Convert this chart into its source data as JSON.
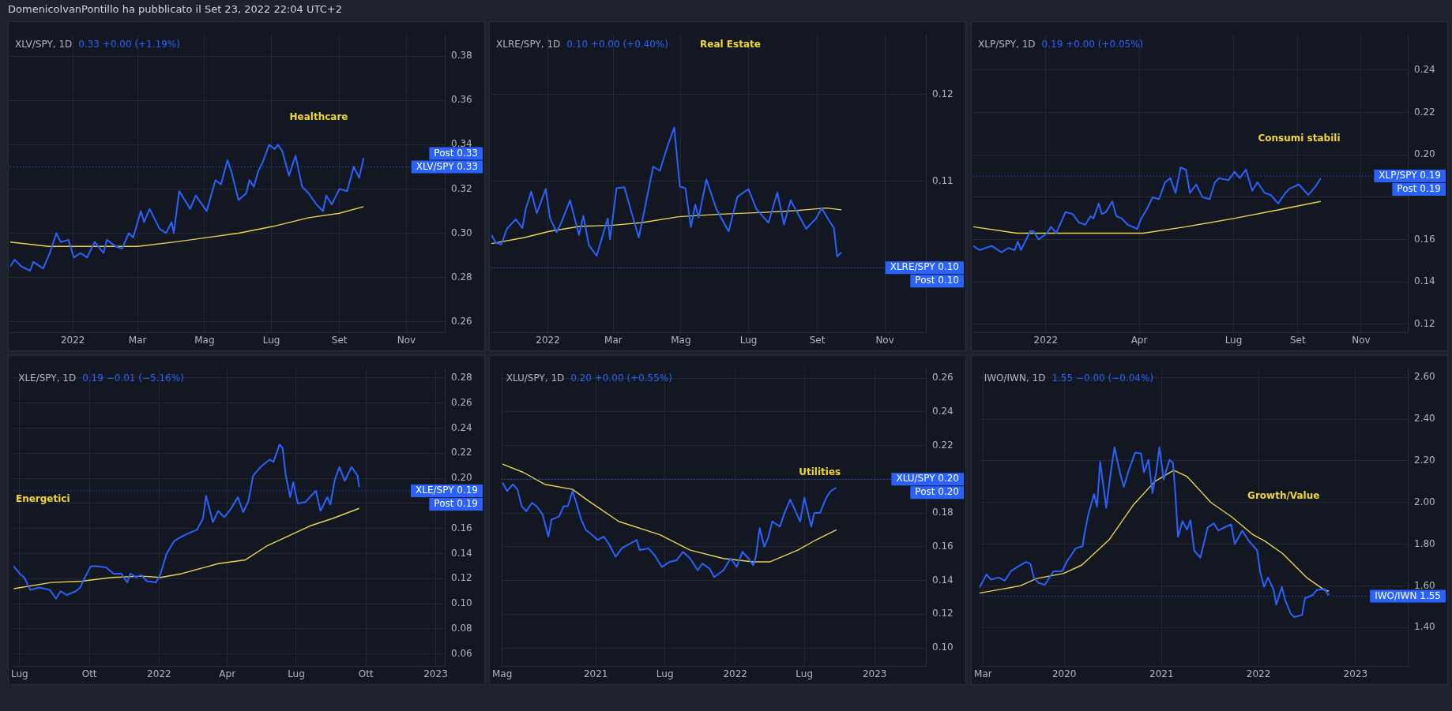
{
  "chart_data": [
    {
      "type": "other",
      "title": "DomenicolvanPontillo ha pubblicato il Set 23, 2022 22:04 UTC+2"
    },
    {
      "type": "line",
      "title": "XLV/SPY, 1D",
      "subtitle": "0.33 +0.00 (+1.19%)",
      "annotations": [
        "Healthcare",
        "Post 0.33"
      ],
      "xlim": [
        "2021-11-05",
        "2022-12-06"
      ],
      "xticks": [
        {
          "value": "2022-01-01",
          "label": "2022"
        },
        {
          "value": "2022-03-01",
          "label": "Mar"
        },
        {
          "value": "2022-05-01",
          "label": "Mag"
        },
        {
          "value": "2022-07-01",
          "label": "Lug"
        },
        {
          "value": "2022-09-01",
          "label": "Set"
        },
        {
          "value": "2022-11-01",
          "label": "Nov"
        }
      ],
      "ylim": [
        0.255,
        0.39
      ],
      "yticks": [
        {
          "value": 0.26,
          "label": "0.26"
        },
        {
          "value": 0.28,
          "label": "0.28"
        },
        {
          "value": 0.3,
          "label": "0.30"
        },
        {
          "value": 0.32,
          "label": "0.32"
        },
        {
          "value": 0.34,
          "label": "0.34"
        },
        {
          "value": 0.36,
          "label": "0.36"
        },
        {
          "value": 0.38,
          "label": "0.38"
        }
      ],
      "grid": true,
      "ref_lines": [
        {
          "axis": "y",
          "value": 0.33,
          "label": "XLV/SPY 0.33"
        }
      ],
      "series": [
        {
          "color": "#2962ff",
          "x": [
            "2021-11-05",
            "2021-11-09",
            "2021-11-15",
            "2021-11-23",
            "2021-11-26",
            "2021-12-05",
            "2021-12-11",
            "2021-12-17",
            "2021-12-21",
            "2021-12-28",
            "2022-01-02",
            "2022-01-08",
            "2022-01-14",
            "2022-01-21",
            "2022-01-29",
            "2022-02-01",
            "2022-02-09",
            "2022-02-15",
            "2022-02-21",
            "2022-02-25",
            "2022-03-04",
            "2022-03-07",
            "2022-03-12",
            "2022-03-21",
            "2022-03-27",
            "2022-04-01",
            "2022-04-03",
            "2022-04-08",
            "2022-04-18",
            "2022-04-23",
            "2022-05-03",
            "2022-05-11",
            "2022-05-16",
            "2022-05-22",
            "2022-05-26",
            "2022-06-01",
            "2022-06-08",
            "2022-06-11",
            "2022-06-15",
            "2022-06-19",
            "2022-06-23",
            "2022-06-29",
            "2022-07-04",
            "2022-07-07",
            "2022-07-11",
            "2022-07-17",
            "2022-07-23",
            "2022-07-29",
            "2022-08-04",
            "2022-08-11",
            "2022-08-17",
            "2022-08-20",
            "2022-08-25",
            "2022-09-01",
            "2022-09-08",
            "2022-09-14",
            "2022-09-19",
            "2022-09-23"
          ],
          "values": [
            0.285,
            0.288,
            0.285,
            0.283,
            0.287,
            0.284,
            0.291,
            0.3,
            0.296,
            0.297,
            0.289,
            0.291,
            0.289,
            0.296,
            0.291,
            0.297,
            0.294,
            0.293,
            0.3,
            0.298,
            0.31,
            0.305,
            0.311,
            0.302,
            0.3,
            0.305,
            0.3,
            0.319,
            0.311,
            0.317,
            0.31,
            0.324,
            0.322,
            0.333,
            0.327,
            0.315,
            0.318,
            0.324,
            0.321,
            0.328,
            0.332,
            0.34,
            0.338,
            0.34,
            0.337,
            0.326,
            0.335,
            0.321,
            0.318,
            0.313,
            0.31,
            0.317,
            0.313,
            0.32,
            0.319,
            0.33,
            0.325,
            0.334
          ]
        },
        {
          "color": "#e8d44d",
          "x": [
            "2021-11-05",
            "2021-12-10",
            "2022-01-21",
            "2022-03-01",
            "2022-04-04",
            "2022-06-01",
            "2022-07-02",
            "2022-08-04",
            "2022-09-01",
            "2022-09-23"
          ],
          "values": [
            0.296,
            0.294,
            0.294,
            0.294,
            0.296,
            0.3,
            0.303,
            0.307,
            0.309,
            0.312
          ]
        }
      ]
    },
    {
      "type": "line",
      "title": "XLRE/SPY, 1D",
      "subtitle": "0.10 +0.00 (+0.40%)",
      "annotations": [
        "Real Estate",
        "Post 0.10"
      ],
      "xlim": [
        "2021-11-11",
        "2022-12-08"
      ],
      "xticks": [
        {
          "value": "2022-01-01",
          "label": "2022"
        },
        {
          "value": "2022-03-01",
          "label": "Mar"
        },
        {
          "value": "2022-05-01",
          "label": "Mag"
        },
        {
          "value": "2022-07-01",
          "label": "Lug"
        },
        {
          "value": "2022-09-01",
          "label": "Set"
        },
        {
          "value": "2022-11-01",
          "label": "Nov"
        }
      ],
      "ylim": [
        0.0925,
        0.127
      ],
      "yticks": [
        {
          "value": 0.1,
          "label": null
        },
        {
          "value": 0.11,
          "label": "0.11"
        },
        {
          "value": 0.12,
          "label": "0.12"
        }
      ],
      "grid": true,
      "ref_lines": [
        {
          "axis": "y",
          "value": 0.1,
          "label": "XLRE/SPY 0.10"
        }
      ],
      "series": [
        {
          "color": "#2962ff",
          "x": [
            "2021-11-11",
            "2021-11-15",
            "2021-11-20",
            "2021-11-25",
            "2021-12-03",
            "2021-12-09",
            "2021-12-12",
            "2021-12-17",
            "2021-12-22",
            "2021-12-30",
            "2022-01-03",
            "2022-01-09",
            "2022-01-13",
            "2022-01-21",
            "2022-01-29",
            "2022-02-02",
            "2022-02-07",
            "2022-02-14",
            "2022-02-24",
            "2022-02-26",
            "2022-03-04",
            "2022-03-11",
            "2022-03-17",
            "2022-03-24",
            "2022-03-29",
            "2022-04-06",
            "2022-04-12",
            "2022-04-19",
            "2022-04-25",
            "2022-04-30",
            "2022-05-05",
            "2022-05-10",
            "2022-05-14",
            "2022-05-17",
            "2022-05-24",
            "2022-06-02",
            "2022-06-13",
            "2022-06-21",
            "2022-07-01",
            "2022-07-08",
            "2022-07-19",
            "2022-07-27",
            "2022-08-02",
            "2022-08-08",
            "2022-08-22",
            "2022-08-31",
            "2022-09-05",
            "2022-09-11",
            "2022-09-16",
            "2022-09-19",
            "2022-09-23"
          ],
          "values": [
            0.1038,
            0.1029,
            0.1027,
            0.1045,
            0.1056,
            0.1046,
            0.1068,
            0.1088,
            0.1063,
            0.1091,
            0.1057,
            0.1041,
            0.1052,
            0.1078,
            0.1038,
            0.106,
            0.1026,
            0.1014,
            0.1057,
            0.1033,
            0.1092,
            0.1093,
            0.1066,
            0.1035,
            0.1066,
            0.1117,
            0.1112,
            0.1141,
            0.1162,
            0.1094,
            0.1092,
            0.1047,
            0.1073,
            0.1058,
            0.1102,
            0.1068,
            0.1042,
            0.1082,
            0.1091,
            0.1068,
            0.1052,
            0.1087,
            0.105,
            0.1078,
            0.1045,
            0.1057,
            0.1069,
            0.1056,
            0.1046,
            0.1013,
            0.1018
          ]
        },
        {
          "color": "#e8d44d",
          "x": [
            "2021-11-11",
            "2021-12-11",
            "2022-01-02",
            "2022-01-30",
            "2022-02-27",
            "2022-03-26",
            "2022-04-29",
            "2022-06-06",
            "2022-07-15",
            "2022-08-12",
            "2022-09-09",
            "2022-09-23"
          ],
          "values": [
            0.1028,
            0.1035,
            0.1042,
            0.1048,
            0.1049,
            0.1052,
            0.1059,
            0.1062,
            0.1064,
            0.1066,
            0.1069,
            0.1067
          ]
        }
      ]
    },
    {
      "type": "line",
      "title": "XLP/SPY, 1D",
      "subtitle": "0.19 +0.00 (+0.05%)",
      "annotations": [
        "Consumi stabili",
        "Post 0.19"
      ],
      "xlim": [
        "2021-10-23",
        "2022-12-16"
      ],
      "xticks": [
        {
          "value": "2022-01-01",
          "label": "2022"
        },
        {
          "value": "2022-04-01",
          "label": "Apr"
        },
        {
          "value": "2022-07-01",
          "label": "Lug"
        },
        {
          "value": "2022-09-01",
          "label": "Set"
        },
        {
          "value": "2022-11-01",
          "label": "Nov"
        }
      ],
      "ylim": [
        0.116,
        0.257
      ],
      "yticks": [
        {
          "value": 0.12,
          "label": "0.12"
        },
        {
          "value": 0.14,
          "label": "0.14"
        },
        {
          "value": 0.16,
          "label": "0.16"
        },
        {
          "value": 0.18,
          "label": null
        },
        {
          "value": 0.2,
          "label": "0.20"
        },
        {
          "value": 0.22,
          "label": "0.22"
        },
        {
          "value": 0.24,
          "label": "0.24"
        }
      ],
      "grid": true,
      "ref_lines": [
        {
          "axis": "y",
          "value": 0.19,
          "label": "XLP/SPY 0.19"
        }
      ],
      "series": [
        {
          "color": "#2962ff",
          "x": [
            "2021-10-23",
            "2021-10-29",
            "2021-11-10",
            "2021-11-19",
            "2021-11-26",
            "2021-12-02",
            "2021-12-05",
            "2021-12-08",
            "2021-12-17",
            "2021-12-20",
            "2021-12-25",
            "2022-01-02",
            "2022-01-06",
            "2022-01-11",
            "2022-01-20",
            "2022-01-27",
            "2022-02-02",
            "2022-02-08",
            "2022-02-13",
            "2022-02-16",
            "2022-02-21",
            "2022-02-24",
            "2022-02-28",
            "2022-03-06",
            "2022-03-10",
            "2022-03-15",
            "2022-03-21",
            "2022-03-30",
            "2022-04-03",
            "2022-04-08",
            "2022-04-14",
            "2022-04-20",
            "2022-04-26",
            "2022-05-01",
            "2022-05-06",
            "2022-05-11",
            "2022-05-16",
            "2022-05-20",
            "2022-05-26",
            "2022-06-01",
            "2022-06-08",
            "2022-06-13",
            "2022-06-17",
            "2022-06-26",
            "2022-07-02",
            "2022-07-07",
            "2022-07-13",
            "2022-07-19",
            "2022-07-24",
            "2022-07-31",
            "2022-08-06",
            "2022-08-13",
            "2022-08-20",
            "2022-08-24",
            "2022-09-02",
            "2022-09-11",
            "2022-09-18",
            "2022-09-23"
          ],
          "values": [
            0.157,
            0.155,
            0.157,
            0.154,
            0.156,
            0.155,
            0.159,
            0.155,
            0.164,
            0.164,
            0.16,
            0.163,
            0.166,
            0.163,
            0.173,
            0.172,
            0.168,
            0.167,
            0.171,
            0.17,
            0.177,
            0.172,
            0.173,
            0.178,
            0.171,
            0.17,
            0.167,
            0.165,
            0.17,
            0.174,
            0.18,
            0.179,
            0.187,
            0.189,
            0.182,
            0.194,
            0.193,
            0.182,
            0.186,
            0.18,
            0.179,
            0.187,
            0.189,
            0.188,
            0.192,
            0.189,
            0.193,
            0.183,
            0.187,
            0.182,
            0.181,
            0.177,
            0.182,
            0.184,
            0.186,
            0.181,
            0.185,
            0.189
          ]
        },
        {
          "color": "#e8d44d",
          "x": [
            "2021-10-23",
            "2021-12-04",
            "2022-01-17",
            "2022-03-03",
            "2022-04-05",
            "2022-05-16",
            "2022-07-02",
            "2022-08-13",
            "2022-09-23"
          ],
          "values": [
            0.166,
            0.163,
            0.163,
            0.163,
            0.163,
            0.166,
            0.17,
            0.174,
            0.178
          ]
        }
      ]
    },
    {
      "type": "line",
      "title": "XLE/SPY, 1D",
      "subtitle": "0.19 −0.01 (−5.16%)",
      "annotations": [
        "Energetici",
        "Post 0.19"
      ],
      "xlim": [
        "2021-06-23",
        "2023-01-13"
      ],
      "xticks": [
        {
          "value": "2021-07-01",
          "label": "Lug"
        },
        {
          "value": "2021-10-01",
          "label": "Ott"
        },
        {
          "value": "2022-01-01",
          "label": "2022"
        },
        {
          "value": "2022-04-01",
          "label": "Apr"
        },
        {
          "value": "2022-07-01",
          "label": "Lug"
        },
        {
          "value": "2022-10-01",
          "label": "Ott"
        },
        {
          "value": "2023-01-01",
          "label": "2023"
        }
      ],
      "ylim": [
        0.05,
        0.288
      ],
      "yticks": [
        {
          "value": 0.06,
          "label": "0.06"
        },
        {
          "value": 0.08,
          "label": "0.08"
        },
        {
          "value": 0.1,
          "label": "0.10"
        },
        {
          "value": 0.12,
          "label": "0.12"
        },
        {
          "value": 0.14,
          "label": "0.14"
        },
        {
          "value": 0.16,
          "label": "0.16"
        },
        {
          "value": 0.18,
          "label": null
        },
        {
          "value": 0.2,
          "label": "0.20"
        },
        {
          "value": 0.22,
          "label": "0.22"
        },
        {
          "value": 0.24,
          "label": "0.24"
        },
        {
          "value": 0.26,
          "label": "0.26"
        },
        {
          "value": 0.28,
          "label": "0.28"
        }
      ],
      "grid": true,
      "ref_lines": [
        {
          "axis": "y",
          "value": 0.19,
          "label": "XLE/SPY 0.19"
        }
      ],
      "series": [
        {
          "color": "#2962ff",
          "x": [
            "2021-06-23",
            "2021-07-01",
            "2021-07-07",
            "2021-07-15",
            "2021-07-27",
            "2021-08-10",
            "2021-08-18",
            "2021-08-24",
            "2021-09-01",
            "2021-09-13",
            "2021-09-19",
            "2021-09-26",
            "2021-10-03",
            "2021-10-11",
            "2021-10-23",
            "2021-11-02",
            "2021-11-12",
            "2021-11-20",
            "2021-11-24",
            "2021-12-02",
            "2021-12-08",
            "2021-12-16",
            "2021-12-28",
            "2022-01-03",
            "2022-01-11",
            "2022-01-21",
            "2022-01-29",
            "2022-02-08",
            "2022-02-20",
            "2022-02-28",
            "2022-03-04",
            "2022-03-13",
            "2022-03-20",
            "2022-03-28",
            "2022-04-05",
            "2022-04-15",
            "2022-04-22",
            "2022-04-29",
            "2022-05-05",
            "2022-05-15",
            "2022-05-27",
            "2022-06-01",
            "2022-06-09",
            "2022-06-13",
            "2022-06-17",
            "2022-06-23",
            "2022-06-27",
            "2022-07-03",
            "2022-07-13",
            "2022-07-19",
            "2022-07-27",
            "2022-08-02",
            "2022-08-11",
            "2022-08-15",
            "2022-08-21",
            "2022-08-27",
            "2022-09-03",
            "2022-09-12",
            "2022-09-20",
            "2022-09-22"
          ],
          "values": [
            0.13,
            0.124,
            0.121,
            0.111,
            0.113,
            0.111,
            0.104,
            0.11,
            0.107,
            0.11,
            0.113,
            0.122,
            0.13,
            0.13,
            0.129,
            0.124,
            0.124,
            0.117,
            0.124,
            0.121,
            0.123,
            0.118,
            0.117,
            0.124,
            0.14,
            0.15,
            0.153,
            0.156,
            0.159,
            0.168,
            0.186,
            0.165,
            0.174,
            0.169,
            0.175,
            0.185,
            0.173,
            0.182,
            0.202,
            0.209,
            0.215,
            0.213,
            0.227,
            0.224,
            0.203,
            0.185,
            0.197,
            0.18,
            0.181,
            0.185,
            0.19,
            0.174,
            0.185,
            0.179,
            0.199,
            0.209,
            0.198,
            0.209,
            0.202,
            0.193
          ]
        },
        {
          "color": "#e8d44d",
          "x": [
            "2021-06-23",
            "2021-08-12",
            "2021-09-21",
            "2021-10-31",
            "2021-12-10",
            "2022-01-03",
            "2022-01-31",
            "2022-03-20",
            "2022-04-25",
            "2022-05-23",
            "2022-06-17",
            "2022-07-19",
            "2022-08-18",
            "2022-09-22"
          ],
          "values": [
            0.112,
            0.117,
            0.118,
            0.121,
            0.122,
            0.121,
            0.124,
            0.132,
            0.135,
            0.146,
            0.153,
            0.162,
            0.168,
            0.176
          ]
        }
      ]
    },
    {
      "type": "line",
      "title": "XLU/SPY, 1D",
      "subtitle": "0.20 +0.00 (+0.55%)",
      "annotations": [
        "Utilities",
        "Post 0.20"
      ],
      "xlim": [
        "2020-04-29",
        "2023-05-15"
      ],
      "xticks": [
        {
          "value": "2020-05-01",
          "label": "Mag"
        },
        {
          "value": "2021-01-01",
          "label": "2021"
        },
        {
          "value": "2021-07-01",
          "label": "Lug"
        },
        {
          "value": "2022-01-01",
          "label": "2022"
        },
        {
          "value": "2022-07-01",
          "label": "Lug"
        },
        {
          "value": "2023-01-01",
          "label": "2023"
        }
      ],
      "ylim": [
        0.089,
        0.266
      ],
      "yticks": [
        {
          "value": 0.1,
          "label": "0.10"
        },
        {
          "value": 0.12,
          "label": "0.12"
        },
        {
          "value": 0.14,
          "label": "0.14"
        },
        {
          "value": 0.16,
          "label": "0.16"
        },
        {
          "value": 0.18,
          "label": "0.18"
        },
        {
          "value": 0.2,
          "label": null
        },
        {
          "value": 0.22,
          "label": "0.22"
        },
        {
          "value": 0.24,
          "label": "0.24"
        },
        {
          "value": 0.26,
          "label": "0.26"
        }
      ],
      "grid": true,
      "ref_lines": [
        {
          "axis": "y",
          "value": 0.2,
          "label": "XLU/SPY 0.20"
        }
      ],
      "series": [
        {
          "color": "#2962ff",
          "x": [
            "2020-05-02",
            "2020-05-14",
            "2020-05-29",
            "2020-06-10",
            "2020-06-21",
            "2020-07-03",
            "2020-07-18",
            "2020-07-30",
            "2020-08-15",
            "2020-08-30",
            "2020-09-07",
            "2020-09-27",
            "2020-10-09",
            "2020-10-20",
            "2020-11-01",
            "2020-11-11",
            "2020-11-24",
            "2020-12-06",
            "2020-12-22",
            "2021-01-06",
            "2021-01-22",
            "2021-02-06",
            "2021-02-22",
            "2021-03-10",
            "2021-03-25",
            "2021-04-18",
            "2021-04-26",
            "2021-05-19",
            "2021-06-04",
            "2021-06-23",
            "2021-07-13",
            "2021-08-01",
            "2021-08-17",
            "2021-09-05",
            "2021-09-25",
            "2021-10-07",
            "2021-10-26",
            "2021-11-07",
            "2021-12-01",
            "2021-12-20",
            "2022-01-05",
            "2022-01-20",
            "2022-02-05",
            "2022-02-17",
            "2022-02-24",
            "2022-03-06",
            "2022-03-18",
            "2022-03-28",
            "2022-04-08",
            "2022-04-28",
            "2022-05-10",
            "2022-05-25",
            "2022-06-10",
            "2022-06-20",
            "2022-07-01",
            "2022-07-19",
            "2022-07-27",
            "2022-08-11",
            "2022-08-27",
            "2022-09-08",
            "2022-09-23"
          ],
          "values": [
            0.198,
            0.193,
            0.197,
            0.194,
            0.184,
            0.181,
            0.186,
            0.184,
            0.179,
            0.166,
            0.176,
            0.178,
            0.184,
            0.184,
            0.193,
            0.186,
            0.176,
            0.17,
            0.167,
            0.164,
            0.166,
            0.161,
            0.154,
            0.159,
            0.161,
            0.164,
            0.158,
            0.159,
            0.155,
            0.148,
            0.151,
            0.152,
            0.157,
            0.153,
            0.146,
            0.15,
            0.147,
            0.142,
            0.146,
            0.153,
            0.148,
            0.157,
            0.153,
            0.149,
            0.154,
            0.171,
            0.16,
            0.165,
            0.175,
            0.172,
            0.18,
            0.188,
            0.18,
            0.175,
            0.189,
            0.172,
            0.18,
            0.18,
            0.189,
            0.193,
            0.195
          ]
        },
        {
          "color": "#e8d44d",
          "x": [
            "2020-05-02",
            "2020-06-26",
            "2020-08-20",
            "2020-11-01",
            "2020-12-14",
            "2021-03-02",
            "2021-06-19",
            "2021-09-05",
            "2021-12-01",
            "2022-02-17",
            "2022-04-01",
            "2022-06-14",
            "2022-07-31",
            "2022-09-23"
          ],
          "values": [
            0.209,
            0.204,
            0.197,
            0.194,
            0.187,
            0.175,
            0.167,
            0.158,
            0.153,
            0.151,
            0.151,
            0.158,
            0.164,
            0.17
          ]
        }
      ]
    },
    {
      "type": "line",
      "title": "IWO/IWN, 1D",
      "subtitle": "1.55 −0.00 (−0.04%)",
      "annotations": [
        "Growth/Value"
      ],
      "xlim": [
        "2019-02-15",
        "2023-07-17"
      ],
      "xticks": [
        {
          "value": "2019-03-01",
          "label": "Mar"
        },
        {
          "value": "2020-01-01",
          "label": "2020"
        },
        {
          "value": "2021-01-01",
          "label": "2021"
        },
        {
          "value": "2022-01-01",
          "label": "2022"
        },
        {
          "value": "2023-01-01",
          "label": "2023"
        }
      ],
      "ylim": [
        1.213,
        2.646
      ],
      "yticks": [
        {
          "value": 1.4,
          "label": "1.40"
        },
        {
          "value": 1.6,
          "label": "1.60"
        },
        {
          "value": 1.8,
          "label": "1.80"
        },
        {
          "value": 2,
          "label": "2.00"
        },
        {
          "value": 2.2,
          "label": "2.20"
        },
        {
          "value": 2.4,
          "label": "2.40"
        },
        {
          "value": 2.6,
          "label": "2.60"
        }
      ],
      "grid": true,
      "ref_lines": [
        {
          "axis": "y",
          "value": 1.55,
          "label": "IWO/IWN 1.55"
        }
      ],
      "series": [
        {
          "color": "#2962ff",
          "x": [
            "2019-02-15",
            "2019-03-14",
            "2019-03-31",
            "2019-04-29",
            "2019-05-22",
            "2019-06-14",
            "2019-07-13",
            "2019-08-10",
            "2019-08-27",
            "2019-09-08",
            "2019-09-25",
            "2019-10-20",
            "2019-11-21",
            "2019-12-24",
            "2020-01-10",
            "2020-02-13",
            "2020-03-10",
            "2020-03-17",
            "2020-04-01",
            "2020-04-22",
            "2020-05-03",
            "2020-05-15",
            "2020-06-07",
            "2020-06-24",
            "2020-07-08",
            "2020-07-28",
            "2020-08-12",
            "2020-09-01",
            "2020-09-24",
            "2020-10-16",
            "2020-10-27",
            "2020-11-13",
            "2020-11-28",
            "2020-12-12",
            "2020-12-24",
            "2021-01-09",
            "2021-01-31",
            "2021-02-13",
            "2021-02-22",
            "2021-03-04",
            "2021-03-21",
            "2021-04-07",
            "2021-04-20",
            "2021-05-04",
            "2021-05-27",
            "2021-06-24",
            "2021-07-17",
            "2021-08-03",
            "2021-08-25",
            "2021-09-20",
            "2021-10-04",
            "2021-11-01",
            "2021-11-23",
            "2021-12-27",
            "2022-01-07",
            "2022-01-22",
            "2022-02-06",
            "2022-02-27",
            "2022-03-09",
            "2022-03-30",
            "2022-04-12",
            "2022-05-03",
            "2022-05-16",
            "2022-06-14",
            "2022-06-25",
            "2022-07-23",
            "2022-08-09",
            "2022-09-06",
            "2022-09-23"
          ],
          "values": [
            1.59,
            1.655,
            1.63,
            1.64,
            1.625,
            1.67,
            1.695,
            1.715,
            1.705,
            1.64,
            1.615,
            1.605,
            1.67,
            1.67,
            1.715,
            1.78,
            1.79,
            1.85,
            1.945,
            2.04,
            1.98,
            2.195,
            1.975,
            2.145,
            2.265,
            2.145,
            2.075,
            2.16,
            2.24,
            2.235,
            2.145,
            2.205,
            2.045,
            2.145,
            2.265,
            2.11,
            2.205,
            2.19,
            2.045,
            1.835,
            1.91,
            1.87,
            1.915,
            1.77,
            1.735,
            1.88,
            1.9,
            1.865,
            1.88,
            1.895,
            1.8,
            1.865,
            1.82,
            1.77,
            1.67,
            1.595,
            1.64,
            1.58,
            1.51,
            1.595,
            1.53,
            1.465,
            1.45,
            1.46,
            1.54,
            1.555,
            1.58,
            1.585,
            1.555
          ]
        },
        {
          "color": "#e8d44d",
          "x": [
            "2019-02-15",
            "2019-07-19",
            "2019-09-19",
            "2019-12-30",
            "2020-03-07",
            "2020-06-17",
            "2020-09-18",
            "2020-12-06",
            "2021-02-16",
            "2021-04-07",
            "2021-07-06",
            "2021-09-23",
            "2021-12-12",
            "2022-01-25",
            "2022-04-02",
            "2022-07-01",
            "2022-09-06",
            "2022-09-23"
          ],
          "values": [
            1.565,
            1.6,
            1.635,
            1.66,
            1.7,
            1.82,
            1.99,
            2.1,
            2.155,
            2.125,
            2,
            1.93,
            1.845,
            1.815,
            1.755,
            1.64,
            1.58,
            1.575
          ]
        }
      ]
    }
  ]
}
